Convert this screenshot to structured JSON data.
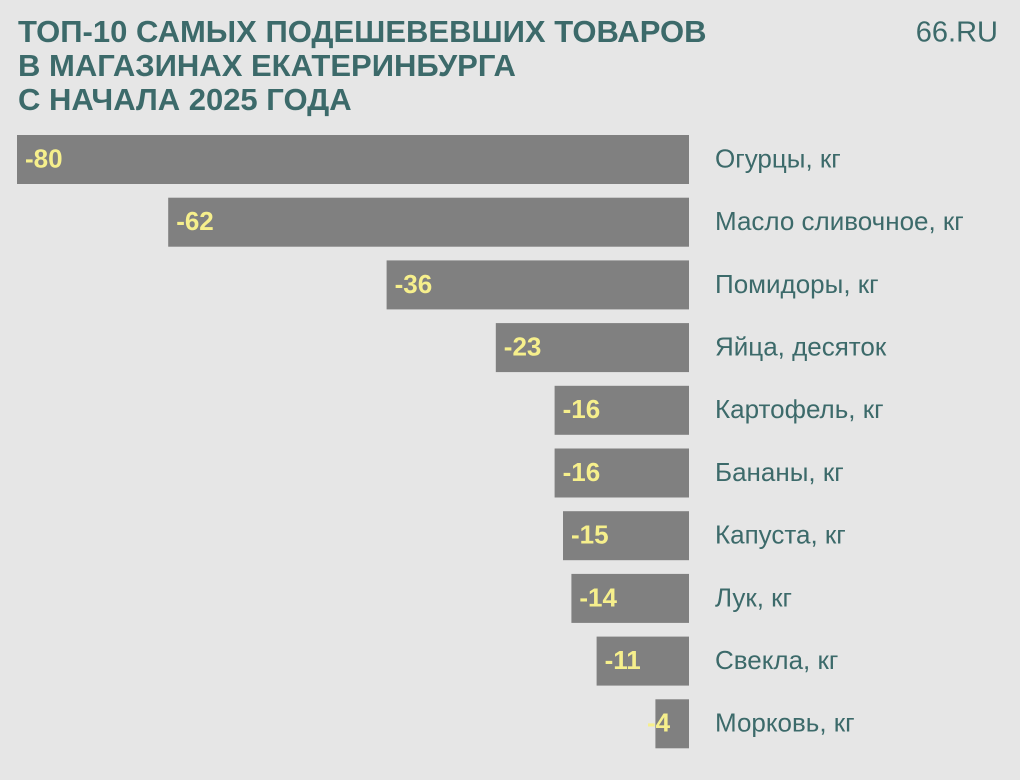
{
  "chart_data": {
    "type": "bar",
    "orientation": "horizontal",
    "title": [
      "ТОП-10 САМЫХ ПОДЕШЕВЕВШИХ ТОВАРОВ",
      "В МАГАЗИНАХ ЕКАТЕРИНБУРГА",
      "С НАЧАЛА 2025 ГОДА"
    ],
    "source": "66.RU",
    "categories": [
      "Огурцы, кг",
      "Масло сливочное, кг",
      "Помидоры, кг",
      "Яйца, десяток",
      "Картофель, кг",
      "Бананы, кг",
      "Капуста, кг",
      "Лук, кг",
      "Свекла, кг",
      "Морковь, кг"
    ],
    "values": [
      -80,
      -62,
      -36,
      -23,
      -16,
      -16,
      -15,
      -14,
      -11,
      -4
    ],
    "color": "#808080",
    "label_color": "#f6ef8c",
    "xlim": [
      -80,
      0
    ]
  }
}
